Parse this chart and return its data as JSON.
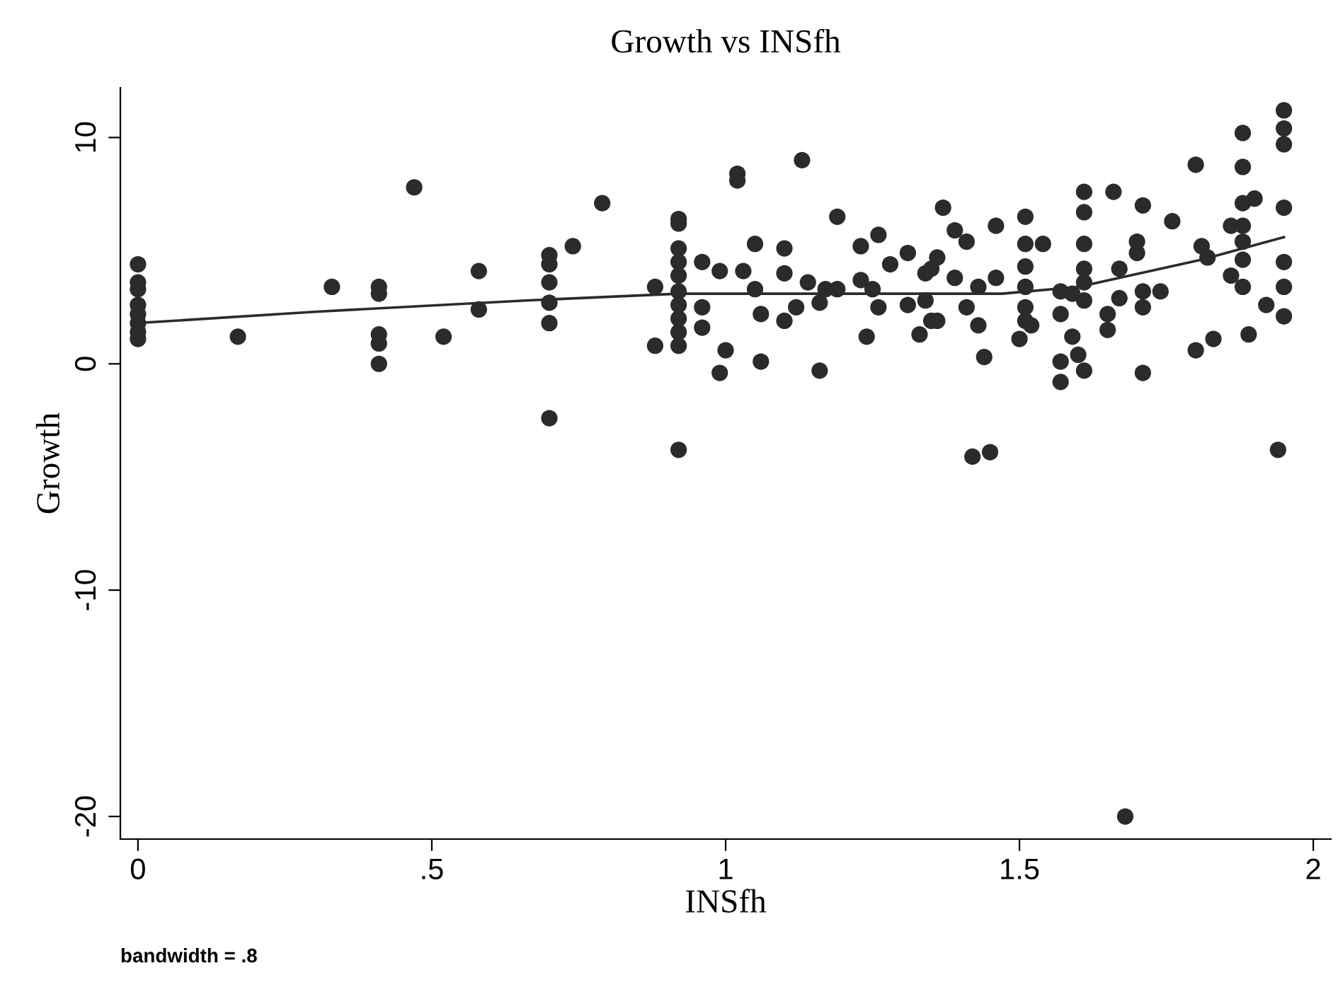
{
  "chart_data": {
    "type": "scatter",
    "title": "Growth vs INSfh",
    "xlabel": "INSfh",
    "ylabel": "Growth",
    "annotations": [
      "bandwidth = .8"
    ],
    "xlim": [
      -0.03,
      2.03
    ],
    "ylim": [
      -21,
      12.2
    ],
    "xticks": [
      0,
      {
        "value": 0.5,
        "label": ".5"
      },
      1,
      {
        "value": 1.5,
        "label": "1.5"
      },
      2
    ],
    "yticks": [
      -20,
      -10,
      0,
      10
    ],
    "grid": false,
    "legend": false,
    "marker": "circle",
    "series": [
      {
        "color": "#2b2b2b",
        "x": [
          0,
          0,
          0,
          0,
          0,
          0,
          0,
          0,
          0.17,
          0.33,
          0.41,
          0.41,
          0.41,
          0.41,
          0.41,
          0.47,
          0.52,
          0.58,
          0.58,
          0.7,
          0.7,
          0.7,
          0.7,
          0.7,
          0.7,
          0.74,
          0.79,
          0.88,
          0.88,
          0.92,
          0.92,
          0.92,
          0.92,
          0.92,
          0.92,
          0.92,
          0.92,
          0.92,
          0.92,
          0.92,
          0.96,
          0.96,
          0.96,
          0.99,
          0.99,
          1.0,
          1.02,
          1.02,
          1.03,
          1.05,
          1.05,
          1.06,
          1.06,
          1.1,
          1.1,
          1.1,
          1.12,
          1.13,
          1.14,
          1.16,
          1.16,
          1.17,
          1.19,
          1.19,
          1.23,
          1.23,
          1.24,
          1.25,
          1.26,
          1.26,
          1.28,
          1.31,
          1.31,
          1.33,
          1.34,
          1.34,
          1.35,
          1.35,
          1.36,
          1.36,
          1.37,
          1.39,
          1.39,
          1.41,
          1.41,
          1.42,
          1.43,
          1.43,
          1.44,
          1.45,
          1.46,
          1.46,
          1.5,
          1.51,
          1.51,
          1.51,
          1.51,
          1.51,
          1.51,
          1.52,
          1.54,
          1.57,
          1.57,
          1.57,
          1.57,
          1.59,
          1.59,
          1.6,
          1.61,
          1.61,
          1.61,
          1.61,
          1.61,
          1.61,
          1.61,
          1.65,
          1.65,
          1.66,
          1.67,
          1.67,
          1.68,
          1.7,
          1.7,
          1.71,
          1.71,
          1.71,
          1.71,
          1.74,
          1.76,
          1.8,
          1.8,
          1.81,
          1.82,
          1.83,
          1.86,
          1.86,
          1.88,
          1.88,
          1.88,
          1.88,
          1.88,
          1.88,
          1.88,
          1.89,
          1.9,
          1.92,
          1.94,
          1.95,
          1.95,
          1.95,
          1.95,
          1.95,
          1.95,
          1.95
        ],
        "values": [
          4.4,
          3.6,
          3.3,
          2.6,
          2.2,
          1.8,
          1.4,
          1.1,
          1.2,
          3.4,
          3.4,
          3.1,
          1.3,
          0.9,
          0,
          7.8,
          1.2,
          4.1,
          2.4,
          4.8,
          4.4,
          3.6,
          2.7,
          1.8,
          -2.4,
          5.2,
          7.1,
          3.4,
          0.8,
          6.4,
          5.1,
          4.5,
          3.9,
          3.2,
          2.6,
          2.0,
          1.4,
          0.8,
          -3.8,
          6.2,
          4.5,
          2.5,
          1.6,
          4.1,
          -0.4,
          0.6,
          8.4,
          8.1,
          4.1,
          5.3,
          3.3,
          2.2,
          0.1,
          5.1,
          4.0,
          1.9,
          2.5,
          9.0,
          3.6,
          2.7,
          -0.3,
          3.3,
          6.5,
          3.3,
          5.2,
          3.7,
          1.2,
          3.3,
          5.7,
          2.5,
          4.4,
          4.9,
          2.6,
          1.3,
          4.0,
          2.8,
          4.2,
          1.9,
          4.7,
          1.9,
          6.9,
          5.9,
          3.8,
          5.4,
          2.5,
          -4.1,
          3.4,
          1.7,
          0.3,
          -3.9,
          6.1,
          3.8,
          1.1,
          6.5,
          5.3,
          4.3,
          3.4,
          2.5,
          1.9,
          1.7,
          5.3,
          3.2,
          2.2,
          0.1,
          -0.8,
          1.2,
          3.1,
          0.4,
          7.6,
          6.7,
          5.3,
          4.2,
          3.6,
          2.8,
          -0.3,
          2.2,
          1.5,
          7.6,
          4.2,
          2.9,
          -20,
          5.4,
          4.9,
          7.0,
          3.2,
          2.5,
          -0.4,
          3.2,
          6.3,
          8.8,
          0.6,
          5.2,
          4.7,
          1.1,
          6.1,
          3.9,
          10.2,
          8.7,
          7.1,
          6.1,
          5.4,
          4.6,
          3.4,
          1.3,
          7.3,
          2.6,
          -3.8,
          11.2,
          10.4,
          9.7,
          6.9,
          4.5,
          3.4,
          2.1
        ]
      },
      {
        "type": "line",
        "color": "#2b2b2b",
        "marker": "none",
        "x": [
          0,
          0.3,
          0.66,
          0.92,
          1.22,
          1.47,
          1.6,
          1.81,
          1.95
        ],
        "values": [
          1.8,
          2.3,
          2.8,
          3.1,
          3.1,
          3.1,
          3.4,
          4.6,
          5.6
        ]
      }
    ]
  }
}
